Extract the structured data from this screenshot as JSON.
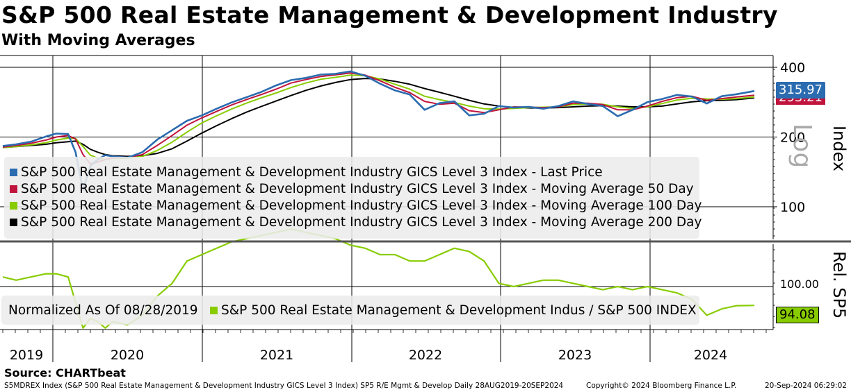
{
  "title": "S&P 500 Real Estate Management & Development Industry",
  "subtitle": "With Moving Averages",
  "source": "Source: CHARTbeat",
  "footer": {
    "left": "S5MDREX Index (S&P 500 Real Estate Management & Development Industry GICS Level 3 Index) SP5 R/E Mgmt & Develop  Daily 28AUG2019-20SEP2024",
    "center": "Copyright© 2024 Bloomberg Finance L.P.",
    "right": "20-Sep-2024 06:29:02"
  },
  "colors": {
    "last_price": "#2b6cb0",
    "ma50": "#c0143c",
    "ma100": "#88cc00",
    "ma200": "#000000",
    "relative": "#88cc00"
  },
  "chart_data": [
    {
      "type": "line",
      "scale": "log",
      "ylabel": "Index",
      "ylabel2": "Log",
      "yticks": [
        100,
        200,
        400
      ],
      "ylim": [
        70,
        420
      ],
      "x_labels": [
        "2019",
        "2020",
        "2021",
        "2022",
        "2023",
        "2024"
      ],
      "last_values": {
        "last_price": "315.97",
        "ma_hidden": "293.21"
      },
      "legend": [
        "S&P 500 Real Estate Management & Development Industry GICS Level 3 Index - Last Price",
        "S&P 500 Real Estate Management & Development Industry GICS Level 3 Index - Moving Average 50 Day",
        "S&P 500 Real Estate Management & Development Industry GICS Level 3 Index - Moving Average 100 Day",
        "S&P 500 Real Estate Management & Development Industry GICS Level 3 Index - Moving Average 200 Day"
      ],
      "x": [
        2019.66,
        2019.75,
        2019.85,
        2019.95,
        2020.02,
        2020.1,
        2020.15,
        2020.2,
        2020.25,
        2020.3,
        2020.35,
        2020.4,
        2020.5,
        2020.6,
        2020.7,
        2020.8,
        2020.9,
        2021.0,
        2021.1,
        2021.2,
        2021.3,
        2021.4,
        2021.5,
        2021.6,
        2021.7,
        2021.8,
        2021.9,
        2022.0,
        2022.1,
        2022.2,
        2022.3,
        2022.4,
        2022.5,
        2022.6,
        2022.7,
        2022.8,
        2022.9,
        2023.0,
        2023.1,
        2023.2,
        2023.3,
        2023.4,
        2023.5,
        2023.6,
        2023.7,
        2023.8,
        2023.9,
        2024.0,
        2024.1,
        2024.2,
        2024.3,
        2024.4,
        2024.5,
        2024.6,
        2024.72
      ],
      "series": [
        {
          "key": "last_price",
          "values": [
            183,
            186,
            191,
            201,
            207,
            206,
            172,
            118,
            150,
            160,
            167,
            165,
            163,
            172,
            195,
            214,
            235,
            248,
            265,
            282,
            297,
            313,
            334,
            352,
            360,
            372,
            375,
            384,
            368,
            340,
            318,
            305,
            262,
            280,
            285,
            248,
            252,
            272,
            268,
            270,
            265,
            272,
            285,
            278,
            272,
            246,
            262,
            283,
            292,
            304,
            299,
            279,
            300,
            306,
            316
          ]
        },
        {
          "key": "ma50",
          "values": [
            181,
            184,
            188,
            194,
            200,
            203,
            196,
            168,
            153,
            156,
            160,
            163,
            163,
            168,
            184,
            203,
            225,
            242,
            258,
            275,
            290,
            305,
            322,
            342,
            354,
            365,
            371,
            378,
            370,
            350,
            328,
            311,
            285,
            277,
            280,
            260,
            255,
            262,
            270,
            269,
            268,
            270,
            280,
            280,
            276,
            262,
            262,
            272,
            285,
            296,
            300,
            288,
            293,
            298,
            303
          ]
        },
        {
          "key": "ma100",
          "values": [
            180,
            182,
            185,
            189,
            194,
            198,
            197,
            182,
            167,
            162,
            160,
            162,
            162,
            165,
            175,
            190,
            210,
            230,
            247,
            264,
            280,
            295,
            310,
            327,
            342,
            355,
            362,
            370,
            368,
            356,
            338,
            322,
            300,
            290,
            282,
            272,
            265,
            264,
            266,
            268,
            269,
            270,
            276,
            278,
            277,
            270,
            266,
            270,
            279,
            289,
            294,
            292,
            291,
            293,
            298
          ]
        },
        {
          "key": "ma200",
          "values": [
            180,
            182,
            184,
            186,
            189,
            191,
            192,
            186,
            177,
            172,
            168,
            166,
            165,
            166,
            170,
            178,
            192,
            208,
            224,
            240,
            256,
            271,
            286,
            302,
            318,
            332,
            344,
            354,
            358,
            356,
            348,
            338,
            324,
            312,
            300,
            288,
            278,
            272,
            268,
            267,
            267,
            268,
            270,
            272,
            273,
            272,
            270,
            270,
            272,
            278,
            284,
            287,
            288,
            290,
            295
          ]
        }
      ]
    },
    {
      "type": "line",
      "ylabel": "Rel. SP5",
      "tick": "100.00",
      "ylim": [
        78,
        118
      ],
      "last_value": "94.08",
      "legend_normalized": "Normalized As Of 08/28/2019",
      "legend": "S&P 500 Real Estate Management & Development Indus / S&P 500 INDEX",
      "x": [
        2019.66,
        2019.75,
        2019.85,
        2019.95,
        2020.02,
        2020.1,
        2020.15,
        2020.2,
        2020.25,
        2020.3,
        2020.35,
        2020.4,
        2020.5,
        2020.6,
        2020.7,
        2020.8,
        2020.9,
        2021.0,
        2021.1,
        2021.2,
        2021.3,
        2021.4,
        2021.5,
        2021.6,
        2021.7,
        2021.8,
        2021.9,
        2022.0,
        2022.1,
        2022.2,
        2022.3,
        2022.4,
        2022.5,
        2022.6,
        2022.7,
        2022.8,
        2022.9,
        2023.0,
        2023.1,
        2023.2,
        2023.3,
        2023.4,
        2023.5,
        2023.6,
        2023.7,
        2023.8,
        2023.9,
        2024.0,
        2024.1,
        2024.2,
        2024.3,
        2024.4,
        2024.5,
        2024.6,
        2024.72
      ],
      "values": [
        103,
        102,
        103,
        104,
        104,
        103,
        95,
        87,
        90,
        89,
        87,
        89,
        88,
        91,
        97,
        101,
        108,
        110,
        112,
        114,
        115,
        116,
        117,
        118,
        117,
        116,
        115,
        113,
        112,
        110,
        110,
        108,
        108,
        110,
        112,
        111,
        108,
        101,
        100,
        101,
        102,
        102,
        101,
        100,
        99,
        100,
        99,
        100,
        99,
        98,
        96,
        91,
        93,
        94,
        94.08
      ]
    }
  ]
}
